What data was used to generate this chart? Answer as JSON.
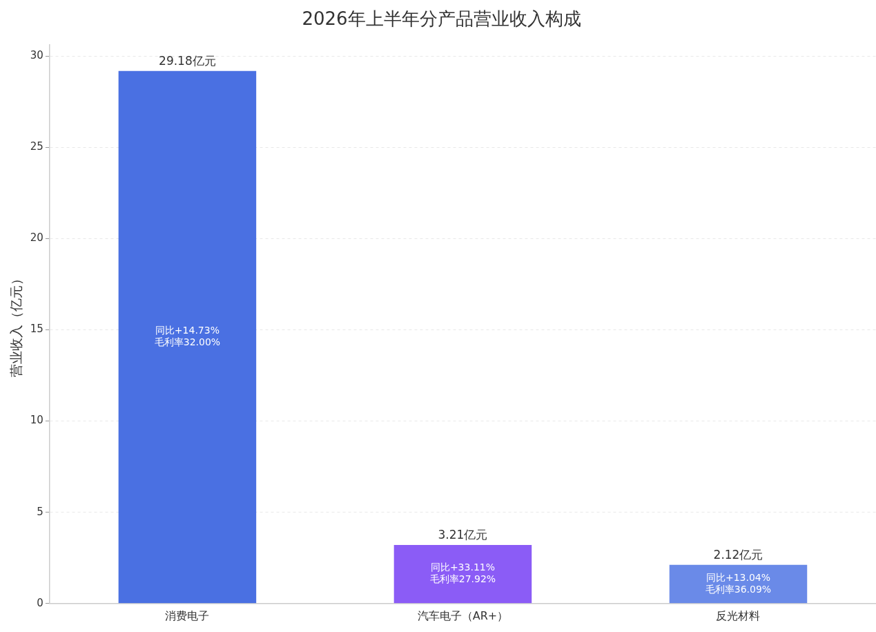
{
  "chart_data": {
    "type": "bar",
    "title": "2026年上半年分产品营业收入构成",
    "ylabel": "营业收入（亿元）",
    "categories": [
      "消费电子",
      "汽车电子（AR+）",
      "反光材料"
    ],
    "values": [
      29.18,
      3.21,
      2.12
    ],
    "colors": [
      "#4a70e2",
      "#8b5cf6",
      "#6a8ae8"
    ],
    "value_labels": [
      "29.18亿元",
      "3.21亿元",
      "2.12亿元"
    ],
    "annotations": [
      "同比+14.73%\n毛利率32.00%",
      "同比+33.11%\n毛利率27.92%",
      "同比+13.04%\n毛利率36.09%"
    ],
    "ylim": [
      0,
      30.6
    ],
    "yticks": [
      0,
      5,
      10,
      15,
      20,
      25,
      30
    ],
    "grid": "y",
    "legend": false
  }
}
